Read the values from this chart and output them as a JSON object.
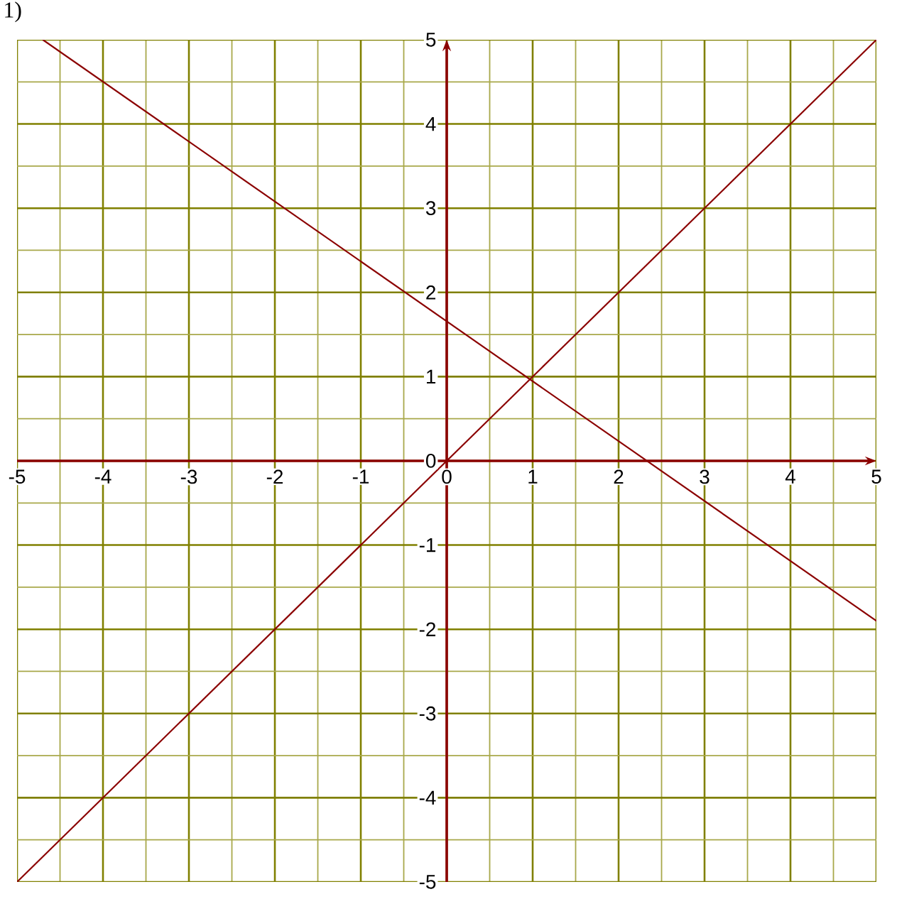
{
  "chart_data": {
    "type": "line",
    "annotations": [
      "1)"
    ],
    "series": [
      {
        "color": "#8b0000",
        "x": [
          -5,
          5
        ],
        "values": [
          -5,
          5
        ]
      },
      {
        "color": "#8b0000",
        "x": [
          -4.7,
          5
        ],
        "values": [
          5,
          -1.9
        ]
      }
    ],
    "xlim": [
      -5,
      5
    ],
    "ylim": [
      -5,
      5
    ],
    "xticks": [
      -5,
      {
        "value": -4.5,
        "label": null
      },
      -4,
      {
        "value": -3.5,
        "label": null
      },
      -3,
      {
        "value": -2.5,
        "label": null
      },
      -2,
      {
        "value": -1.5,
        "label": null
      },
      -1,
      {
        "value": -0.5,
        "label": null
      },
      0,
      {
        "value": 0.5,
        "label": null
      },
      1,
      {
        "value": 1.5,
        "label": null
      },
      2,
      {
        "value": 2.5,
        "label": null
      },
      3,
      {
        "value": 3.5,
        "label": null
      },
      4,
      {
        "value": 4.5,
        "label": null
      },
      5
    ],
    "yticks": [
      -5,
      {
        "value": -4.5,
        "label": null
      },
      -4,
      {
        "value": -3.5,
        "label": null
      },
      -3,
      {
        "value": -2.5,
        "label": null
      },
      -2,
      {
        "value": -1.5,
        "label": null
      },
      -1,
      {
        "value": -0.5,
        "label": null
      },
      0,
      {
        "value": 0.5,
        "label": null
      },
      1,
      {
        "value": 1.5,
        "label": null
      },
      2,
      {
        "value": 2.5,
        "label": null
      },
      3,
      {
        "value": 3.5,
        "label": null
      },
      4,
      {
        "value": 4.5,
        "label": null
      },
      5
    ],
    "grid": true
  }
}
